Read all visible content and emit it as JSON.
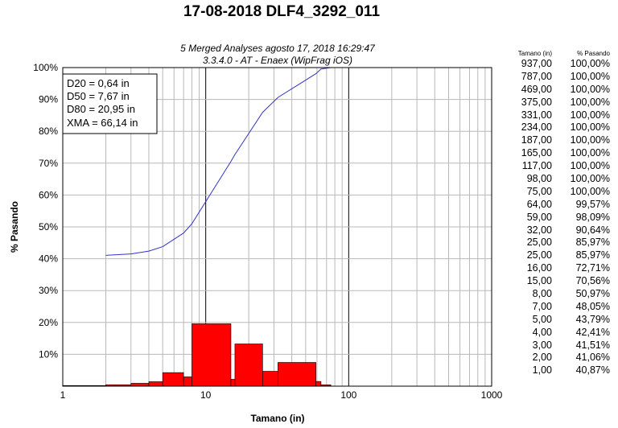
{
  "title": "17-08-2018 DLF4_3292_011",
  "subtitle_line1": "5 Merged Analyses   agosto 17, 2018 16:29:47",
  "subtitle_line2": "3.3.4.0  -  AT - Enaex (WipFrag iOS)",
  "stats": [
    "D20 = 0,64 in",
    "D50 = 7,67 in",
    "D80 = 20,95 in",
    "XMA = 66,14 in"
  ],
  "table": {
    "header_size": "Tamano (in)",
    "header_pass": "% Pasando",
    "sizes": [
      "937,00",
      "787,00",
      "469,00",
      "375,00",
      "331,00",
      "234,00",
      "187,00",
      "165,00",
      "117,00",
      "98,00",
      "75,00",
      "64,00",
      "59,00",
      "32,00",
      "25,00",
      "25,00",
      "16,00",
      "15,00",
      "8,00",
      "7,00",
      "5,00",
      "4,00",
      "3,00",
      "2,00",
      "1,00"
    ],
    "passing": [
      "100,00%",
      "100,00%",
      "100,00%",
      "100,00%",
      "100,00%",
      "100,00%",
      "100,00%",
      "100,00%",
      "100,00%",
      "100,00%",
      "100,00%",
      "99,57%",
      "98,09%",
      "90,64%",
      "85,97%",
      "85,97%",
      "72,71%",
      "70,56%",
      "50,97%",
      "48,05%",
      "43,79%",
      "42,41%",
      "41,51%",
      "41,06%",
      "40,87%"
    ]
  },
  "chart_data": {
    "type": "bar",
    "xlabel": "Tamano (in)",
    "ylabel": "% Pasando",
    "x_scale": "log",
    "xlim": [
      1,
      1000
    ],
    "ylim": [
      0,
      100
    ],
    "x_ticks": [
      "1",
      "10",
      "100",
      "1000"
    ],
    "y_ticks": [
      "10%",
      "20%",
      "30%",
      "40%",
      "50%",
      "60%",
      "70%",
      "80%",
      "90%",
      "100%"
    ],
    "grid": true,
    "series": [
      {
        "kind": "line",
        "color": "#3333cc",
        "points": [
          [
            2,
            41.06
          ],
          [
            3,
            41.51
          ],
          [
            4,
            42.41
          ],
          [
            5,
            43.79
          ],
          [
            7,
            48.05
          ],
          [
            8,
            50.97
          ],
          [
            15,
            70.56
          ],
          [
            16,
            72.71
          ],
          [
            25,
            85.97
          ],
          [
            32,
            90.64
          ],
          [
            59,
            98.09
          ],
          [
            64,
            99.57
          ],
          [
            75,
            100
          ],
          [
            98,
            100
          ],
          [
            117,
            100
          ],
          [
            165,
            100
          ],
          [
            187,
            100
          ],
          [
            234,
            100
          ],
          [
            331,
            100
          ],
          [
            375,
            100
          ],
          [
            469,
            100
          ],
          [
            787,
            100
          ],
          [
            937,
            100
          ]
        ]
      },
      {
        "kind": "histogram",
        "color": "#ff0000",
        "bins": [
          {
            "from": 1,
            "to": 2,
            "value": 0.2
          },
          {
            "from": 2,
            "to": 3,
            "value": 0.45
          },
          {
            "from": 3,
            "to": 4,
            "value": 0.9
          },
          {
            "from": 4,
            "to": 5,
            "value": 1.4
          },
          {
            "from": 5,
            "to": 7,
            "value": 4.26
          },
          {
            "from": 7,
            "to": 8,
            "value": 2.92
          },
          {
            "from": 8,
            "to": 15,
            "value": 19.59
          },
          {
            "from": 15,
            "to": 16,
            "value": 2.15
          },
          {
            "from": 16,
            "to": 25,
            "value": 13.26
          },
          {
            "from": 25,
            "to": 32,
            "value": 4.67
          },
          {
            "from": 32,
            "to": 59,
            "value": 7.45
          },
          {
            "from": 59,
            "to": 64,
            "value": 1.48
          },
          {
            "from": 64,
            "to": 75,
            "value": 0.43
          }
        ]
      }
    ]
  }
}
